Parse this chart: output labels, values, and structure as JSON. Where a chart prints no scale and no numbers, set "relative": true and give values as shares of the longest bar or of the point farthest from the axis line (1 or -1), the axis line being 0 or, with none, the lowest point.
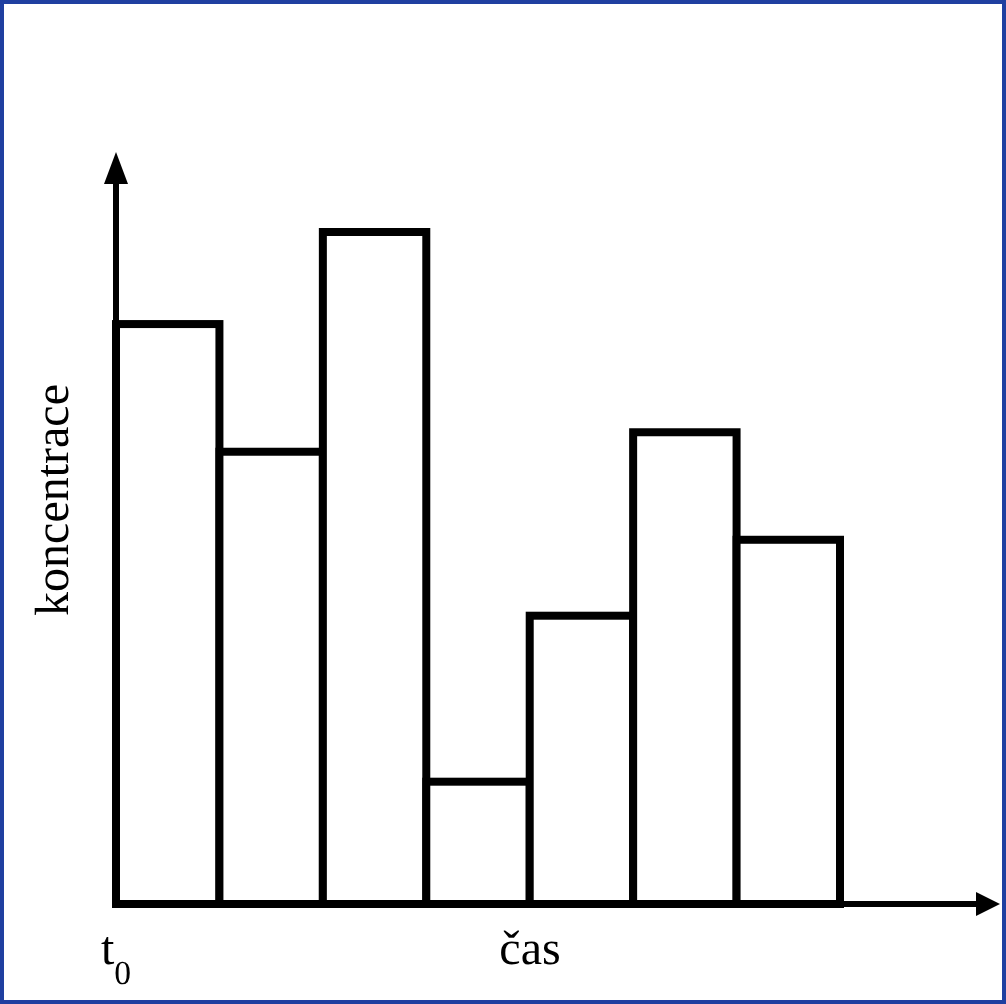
{
  "chart_data": {
    "type": "bar",
    "relative": true,
    "xlabel": "čas",
    "ylabel": "koncentrace",
    "annotations": [
      "t$_{0}$"
    ],
    "categories": [
      null,
      null,
      null,
      null,
      null,
      null,
      null
    ],
    "values": [
      0.863,
      0.673,
      1,
      0.182,
      0.429,
      0.702,
      0.542
    ],
    "color": "#ffffff"
  }
}
